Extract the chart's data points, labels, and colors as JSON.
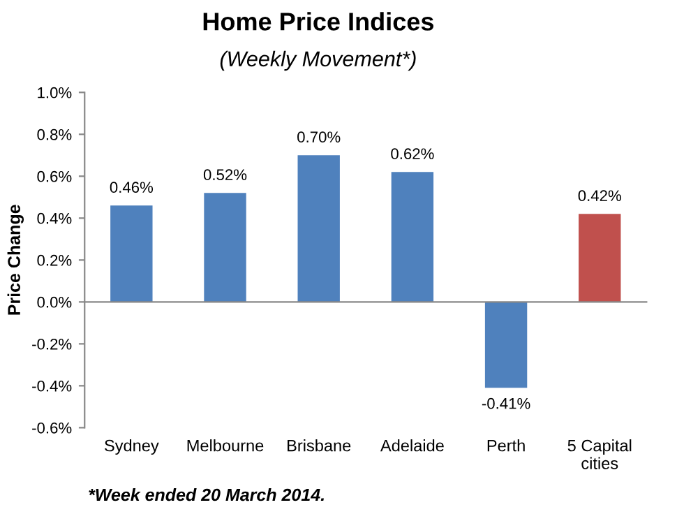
{
  "chart_data": {
    "type": "bar",
    "title": "Home Price Indices",
    "subtitle": "(Weekly Movement*)",
    "ylabel": "Price Change",
    "categories": [
      "Sydney",
      "Melbourne",
      "Brisbane",
      "Adelaide",
      "Perth",
      "5 Capital cities"
    ],
    "values": [
      0.46,
      0.52,
      0.7,
      0.62,
      -0.41,
      0.42
    ],
    "colors": [
      "#4f81bd",
      "#4f81bd",
      "#4f81bd",
      "#4f81bd",
      "#4f81bd",
      "#c0504d"
    ],
    "value_labels": [
      "0.46%",
      "0.52%",
      "0.70%",
      "0.62%",
      "-0.41%",
      "0.42%"
    ],
    "ylim": [
      -0.6,
      1.0
    ],
    "yticks": [
      {
        "value": -0.6,
        "label": "-0.6%"
      },
      {
        "value": -0.4,
        "label": "-0.4%"
      },
      {
        "value": -0.2,
        "label": "-0.2%"
      },
      {
        "value": 0,
        "label": "0.0%"
      },
      {
        "value": 0.2,
        "label": "0.2%"
      },
      {
        "value": 0.4,
        "label": "0.4%"
      },
      {
        "value": 0.6,
        "label": "0.6%"
      },
      {
        "value": 0.8,
        "label": "0.8%"
      },
      {
        "value": 1.0,
        "label": "1.0%"
      }
    ],
    "annotations": [
      "*Week ended 20 March 2014."
    ]
  }
}
